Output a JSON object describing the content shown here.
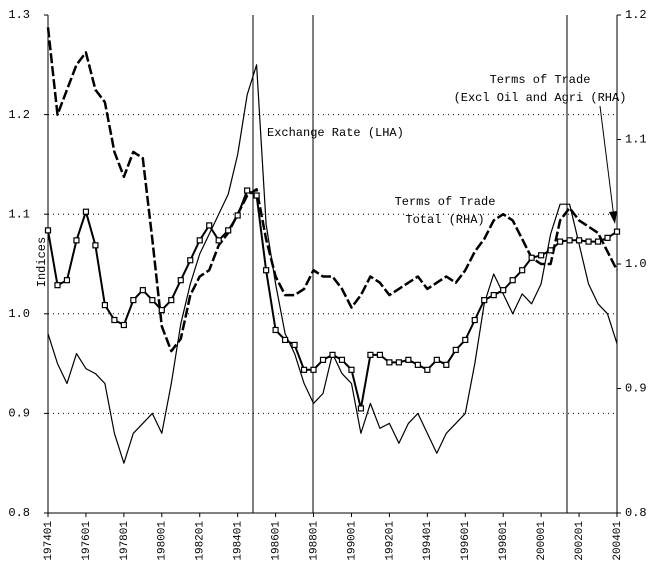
{
  "chart_data": {
    "type": "line",
    "y_label": "Indices",
    "categories": [
      "197401",
      null,
      null,
      null,
      "197601",
      null,
      null,
      null,
      "197801",
      null,
      null,
      null,
      "198001",
      null,
      null,
      null,
      "198201",
      null,
      null,
      null,
      "198401",
      null,
      null,
      null,
      "198601",
      null,
      null,
      null,
      "198801",
      null,
      null,
      null,
      "199001",
      null,
      null,
      null,
      "199201",
      null,
      null,
      null,
      "199401",
      null,
      null,
      null,
      "199601",
      null,
      null,
      null,
      "199801",
      null,
      null,
      null,
      "200001",
      null,
      null,
      null,
      "200201",
      null,
      null,
      null,
      "200401"
    ],
    "ylim": [
      0.8,
      1.3
    ],
    "yticks": [
      0.8,
      0.9,
      {
        "value": 1,
        "label": "1.0"
      },
      1.1,
      1.2,
      1.3
    ],
    "y2lim": [
      0.8,
      1.2
    ],
    "y2ticks": [
      0.8,
      0.9,
      {
        "value": 1,
        "label": "1.0"
      },
      1.1,
      1.2
    ],
    "grid": true,
    "series": [
      {
        "color": "#000000",
        "axis": "y",
        "style": "solid",
        "values": [
          0.98,
          0.95,
          0.93,
          0.96,
          0.945,
          0.94,
          0.93,
          0.88,
          0.85,
          0.88,
          0.89,
          0.9,
          0.88,
          0.93,
          0.99,
          1.03,
          1.06,
          1.08,
          1.1,
          1.12,
          1.16,
          1.22,
          1.25,
          1.09,
          1.03,
          0.98,
          0.96,
          0.93,
          0.91,
          0.92,
          0.96,
          0.94,
          0.93,
          0.88,
          0.91,
          0.885,
          0.89,
          0.87,
          0.89,
          0.9,
          0.88,
          0.86,
          0.88,
          0.89,
          0.9,
          0.95,
          1.01,
          1.04,
          1.02,
          1.0,
          1.02,
          1.01,
          1.03,
          1.08,
          1.11,
          1.11,
          1.07,
          1.03,
          1.01,
          1.0,
          0.97
        ]
      },
      {
        "color": "#000000",
        "axis": "y2",
        "style": "dashed",
        "values": [
          1.19,
          1.12,
          1.14,
          1.16,
          1.17,
          1.14,
          1.13,
          1.09,
          1.07,
          1.09,
          1.085,
          1.02,
          0.95,
          0.93,
          0.94,
          0.975,
          0.99,
          0.995,
          1.015,
          1.025,
          1.04,
          1.055,
          1.06,
          1.02,
          0.99,
          0.975,
          0.975,
          0.98,
          0.995,
          0.99,
          0.99,
          0.98,
          0.965,
          0.975,
          0.99,
          0.985,
          0.975,
          0.98,
          0.985,
          0.99,
          0.98,
          0.985,
          0.99,
          0.985,
          0.995,
          1.01,
          1.02,
          1.035,
          1.04,
          1.035,
          1.02,
          1.005,
          1.0,
          1.0,
          1.035,
          1.045,
          1.035,
          1.03,
          1.025,
          1.01,
          0.995
        ]
      },
      {
        "color": "#000000",
        "axis": "y2",
        "style": "solid",
        "marker": "square",
        "values": [
          1.027,
          0.983,
          0.987,
          1.019,
          1.042,
          1.015,
          0.967,
          0.955,
          0.951,
          0.971,
          0.979,
          0.971,
          0.963,
          0.971,
          0.987,
          1.003,
          1.019,
          1.031,
          1.019,
          1.027,
          1.039,
          1.059,
          1.055,
          0.995,
          0.947,
          0.939,
          0.935,
          0.915,
          0.915,
          0.923,
          0.927,
          0.923,
          0.915,
          0.884,
          0.927,
          0.927,
          0.921,
          0.921,
          0.923,
          0.919,
          0.915,
          0.923,
          0.919,
          0.931,
          0.939,
          0.955,
          0.971,
          0.975,
          0.979,
          0.987,
          0.995,
          1.005,
          1.007,
          1.011,
          1.018,
          1.019,
          1.019,
          1.018,
          1.018,
          1.021,
          1.026
        ]
      }
    ],
    "annotations": [
      {
        "lines": [
          "Exchange Rate (LHA)"
        ]
      },
      {
        "lines": [
          "Terms of Trade",
          "Total (RHA)"
        ]
      },
      {
        "lines": [
          "Terms of Trade",
          "(Excl Oil and Agri (RHA)"
        ]
      }
    ]
  }
}
